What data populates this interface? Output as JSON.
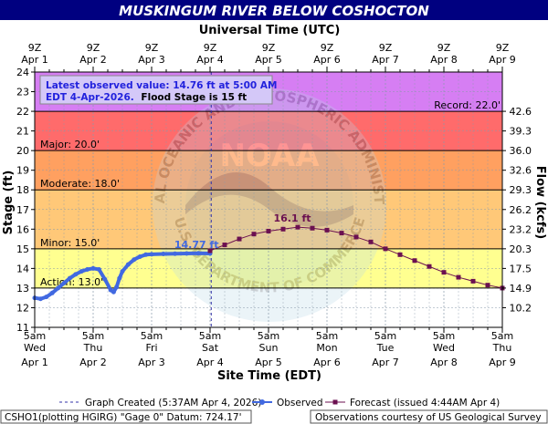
{
  "header": {
    "title": "MUSKINGUM RIVER BELOW COSHOCTON",
    "top_axis_title": "Universal Time (UTC)",
    "bottom_axis_title": "Site Time (EDT)",
    "left_axis_title": "Stage (ft)",
    "right_axis_title": "Flow (kcfs)"
  },
  "colors": {
    "title_bg": "#000080",
    "record_band": "#d67ef3",
    "major_band": "#ff6b6b",
    "moderate_band": "#ffa060",
    "minor_band": "#ffc878",
    "action_band": "#ffff90",
    "normal_band": "#ffffff",
    "observed": "#4169e1",
    "forecast": "#6b1050",
    "created_line": "#3333aa",
    "infobox_bg": "#d4c8f8",
    "infobox_text": "#2222dd"
  },
  "info_box": {
    "line1": "Latest observed value: 14.76 ft at 5:00 AM",
    "line2_prefix": "EDT 4-Apr-2026.",
    "line2_suffix": "Flood Stage is 15 ft"
  },
  "thresholds": [
    {
      "label": "Record: 22.0'",
      "value": 22.0
    },
    {
      "label": "Major: 20.0'",
      "value": 20.0
    },
    {
      "label": "Moderate: 18.0'",
      "value": 18.0
    },
    {
      "label": "Minor: 15.0'",
      "value": 15.0
    },
    {
      "label": "Action: 13.0'",
      "value": 13.0
    }
  ],
  "annotations": {
    "observed_peak_label": "14.77 ft",
    "forecast_peak_label": "16.1 ft"
  },
  "legend": {
    "created": "Graph Created (5:37AM Apr 4, 2026)",
    "observed": "Observed",
    "forecast": "Forecast (issued 4:44AM Apr 4)"
  },
  "footer": {
    "left": "CSHO1(plotting HGIRG) \"Gage 0\" Datum: 724.17'",
    "right": "Observations courtesy of US Geological Survey"
  },
  "watermark": {
    "top_text": "NATIONAL OCEANIC AND ATMOSPHERIC ADMINISTRATION",
    "center_text": "NOAA",
    "bottom_text": "U.S. DEPARTMENT OF COMMERCE"
  },
  "chart_data": {
    "type": "line",
    "title": "MUSKINGUM RIVER BELOW COSHOCTON",
    "xlabel": "Site Time (EDT)",
    "ylabel": "Stage (ft)",
    "y2label": "Flow (kcfs)",
    "x2label": "Universal Time (UTC)",
    "xlim_days": [
      0,
      8
    ],
    "ylim": [
      11,
      24
    ],
    "y_ticks": [
      11,
      12,
      13,
      14,
      15,
      16,
      17,
      18,
      19,
      20,
      21,
      22,
      23,
      24
    ],
    "y2_ticks": [
      {
        "stage": 12.0,
        "label": "10.2"
      },
      {
        "stage": 13.0,
        "label": "14.9"
      },
      {
        "stage": 14.0,
        "label": "17.5"
      },
      {
        "stage": 15.0,
        "label": "20.3"
      },
      {
        "stage": 16.0,
        "label": "23.2"
      },
      {
        "stage": 17.0,
        "label": "26.2"
      },
      {
        "stage": 18.0,
        "label": "29.3"
      },
      {
        "stage": 19.0,
        "label": "32.6"
      },
      {
        "stage": 20.0,
        "label": "36.0"
      },
      {
        "stage": 21.0,
        "label": "39.3"
      },
      {
        "stage": 22.0,
        "label": "42.6"
      }
    ],
    "bottom_ticks": [
      {
        "time": "5am",
        "day": "Wed",
        "date": "Apr 1"
      },
      {
        "time": "5am",
        "day": "Thu",
        "date": "Apr 2"
      },
      {
        "time": "5am",
        "day": "Fri",
        "date": "Apr 3"
      },
      {
        "time": "5am",
        "day": "Sat",
        "date": "Apr 4"
      },
      {
        "time": "5am",
        "day": "Sun",
        "date": "Apr 5"
      },
      {
        "time": "5am",
        "day": "Mon",
        "date": "Apr 6"
      },
      {
        "time": "5am",
        "day": "Tue",
        "date": "Apr 7"
      },
      {
        "time": "5am",
        "day": "Wed",
        "date": "Apr 8"
      },
      {
        "time": "5am",
        "day": "Thu",
        "date": "Apr 9"
      }
    ],
    "top_ticks": [
      {
        "time": "9Z",
        "date": "Apr 1"
      },
      {
        "time": "9Z",
        "date": "Apr 2"
      },
      {
        "time": "9Z",
        "date": "Apr 3"
      },
      {
        "time": "9Z",
        "date": "Apr 4"
      },
      {
        "time": "9Z",
        "date": "Apr 5"
      },
      {
        "time": "9Z",
        "date": "Apr 6"
      },
      {
        "time": "9Z",
        "date": "Apr 7"
      },
      {
        "time": "9Z",
        "date": "Apr 8"
      },
      {
        "time": "9Z",
        "date": "Apr 9"
      }
    ],
    "graph_created_day": 3.02,
    "series": [
      {
        "name": "Observed",
        "x_days": [
          0,
          0.1,
          0.2,
          0.3,
          0.4,
          0.5,
          0.6,
          0.7,
          0.8,
          0.9,
          1.0,
          1.1,
          1.2,
          1.3,
          1.35,
          1.4,
          1.45,
          1.5,
          1.6,
          1.7,
          1.8,
          1.9,
          2.0,
          2.2,
          2.4,
          2.6,
          2.8,
          3.0
        ],
        "values": [
          12.5,
          12.45,
          12.55,
          12.75,
          13.0,
          13.25,
          13.5,
          13.7,
          13.85,
          13.95,
          14.0,
          13.95,
          13.45,
          12.9,
          12.8,
          13.05,
          13.5,
          13.85,
          14.2,
          14.45,
          14.6,
          14.7,
          14.72,
          14.74,
          14.75,
          14.76,
          14.77,
          14.76
        ]
      },
      {
        "name": "Forecast",
        "x_days": [
          3.0,
          3.25,
          3.5,
          3.75,
          4.0,
          4.25,
          4.5,
          4.75,
          5.0,
          5.25,
          5.5,
          5.75,
          6.0,
          6.25,
          6.5,
          6.75,
          7.0,
          7.25,
          7.5,
          7.75,
          8.0
        ],
        "values": [
          14.9,
          15.2,
          15.5,
          15.75,
          15.9,
          16.0,
          16.1,
          16.05,
          15.95,
          15.8,
          15.6,
          15.35,
          15.0,
          14.7,
          14.4,
          14.1,
          13.8,
          13.55,
          13.35,
          13.15,
          13.0
        ]
      }
    ]
  }
}
